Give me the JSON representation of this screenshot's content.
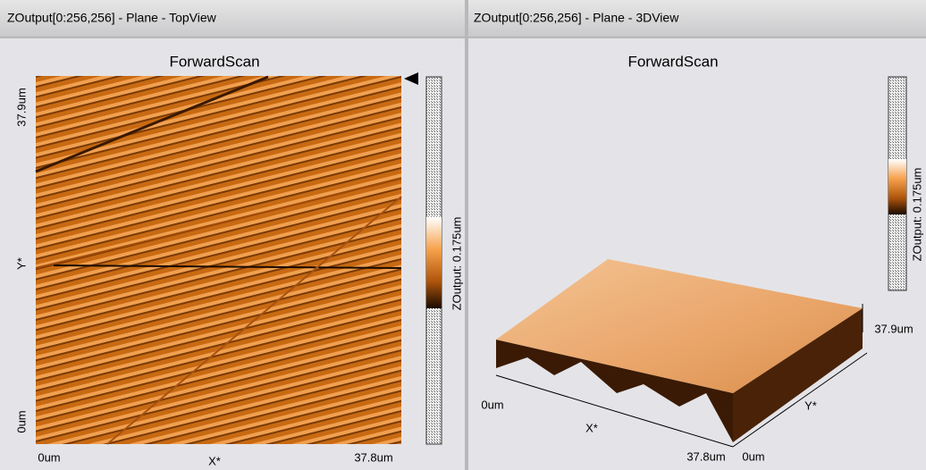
{
  "panels": [
    {
      "title": "ZOutput[0:256,256] - Plane - TopView",
      "plot_title": "ForwardScan",
      "x_axis": {
        "label": "X*",
        "min": "0um",
        "max": "37.8um"
      },
      "y_axis": {
        "label": "Y*",
        "min": "0um",
        "max": "37.9um"
      },
      "colorbar_label": "ZOutput: 0.175um"
    },
    {
      "title": "ZOutput[0:256,256] - Plane - 3DView",
      "plot_title": "ForwardScan",
      "x_axis": {
        "label": "X*",
        "min": "0um",
        "max": "37.8um"
      },
      "y_axis": {
        "label": "Y*",
        "min": "0um",
        "max": "37.9um"
      },
      "colorbar_label": "ZOutput: 0.175um"
    }
  ]
}
